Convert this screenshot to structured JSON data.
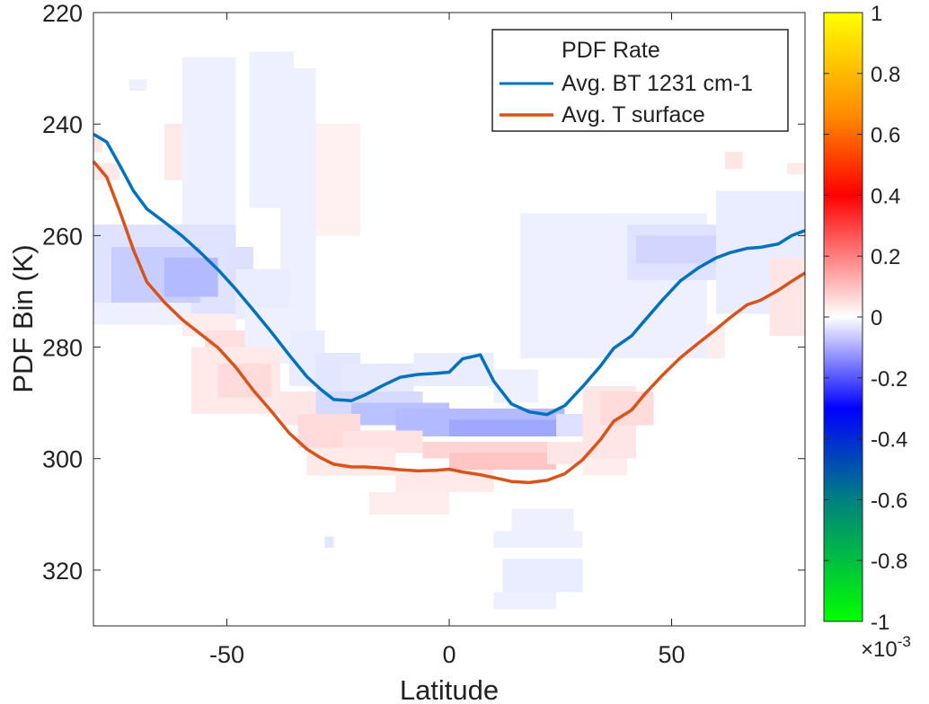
{
  "chart_data": {
    "type": "heatmap",
    "title": "",
    "xlabel": "Latitude",
    "ylabel": "PDF Bin (K)",
    "xlim": [
      -80,
      80
    ],
    "ylim": [
      220,
      330
    ],
    "y_reversed": true,
    "x_ticks": [
      -50,
      0,
      50
    ],
    "x_tick_labels": [
      "-50",
      "0",
      "50"
    ],
    "y_ticks": [
      220,
      240,
      260,
      280,
      300,
      320
    ],
    "y_tick_labels": [
      "220",
      "240",
      "260",
      "280",
      "300",
      "320"
    ],
    "grid": false,
    "legend": {
      "placement": "top-right",
      "title": "PDF Rate",
      "entries": [
        "Avg. BT 1231 cm-1",
        "Avg. T surface"
      ]
    },
    "colorbar": {
      "placement": "right",
      "lim": [
        -1,
        1
      ],
      "ticks": [
        -1,
        -0.8,
        -0.6,
        -0.4,
        -0.2,
        0,
        0.2,
        0.4,
        0.6,
        0.8,
        1
      ],
      "tick_labels": [
        "-1",
        "-0.8",
        "-0.6",
        "-0.4",
        "-0.2",
        "0",
        "0.2",
        "0.4",
        "0.6",
        "0.8",
        "1"
      ],
      "multiplier_label": "×10",
      "multiplier_exponent": "-3",
      "colors": [
        "#00ff00",
        "#008080",
        "#0000ff",
        "#ffffff",
        "#ff0000",
        "#ffff00"
      ]
    },
    "series": [
      {
        "name": "Avg. BT 1231 cm-1",
        "color": "#0072bd",
        "x": [
          -80,
          -77,
          -74,
          -71,
          -68,
          -64,
          -60,
          -56,
          -52,
          -48,
          -44,
          -40,
          -36,
          -32,
          -29,
          -26,
          -22,
          -19,
          -15,
          -11,
          -7,
          -3,
          0,
          3,
          7,
          10,
          14,
          18,
          22,
          26,
          30,
          34,
          37,
          41,
          44,
          48,
          52,
          56,
          60,
          63,
          67,
          70,
          74,
          77,
          80
        ],
        "y": [
          241.8,
          243.2,
          247.5,
          252,
          255.2,
          257.6,
          260.1,
          263,
          266.1,
          269.6,
          273.4,
          277.3,
          281.4,
          285.3,
          287.5,
          289.4,
          289.6,
          288.6,
          286.9,
          285.4,
          284.9,
          284.7,
          284.5,
          282.1,
          281.4,
          286.1,
          290.2,
          291.6,
          292.1,
          290.5,
          287.1,
          283.4,
          280.2,
          278,
          275.2,
          271.5,
          268.1,
          265.8,
          264,
          263.1,
          262.3,
          262.1,
          261.5,
          260,
          259.1
        ]
      },
      {
        "name": "Avg. T surface",
        "color": "#d95319",
        "x": [
          -80,
          -77,
          -74,
          -71,
          -68,
          -64,
          -60,
          -56,
          -52,
          -48,
          -44,
          -40,
          -36,
          -32,
          -29,
          -26,
          -22,
          -19,
          -15,
          -11,
          -7,
          -3,
          0,
          3,
          7,
          10,
          14,
          18,
          22,
          26,
          30,
          34,
          37,
          41,
          44,
          48,
          52,
          56,
          60,
          63,
          67,
          70,
          74,
          77,
          80
        ],
        "y": [
          246.7,
          249.5,
          255.8,
          262.6,
          268.3,
          272,
          275.1,
          277.6,
          280.1,
          283.6,
          287.8,
          291.5,
          295.4,
          298.3,
          299.8,
          301,
          301.5,
          301.5,
          301.7,
          302,
          302.2,
          302.1,
          301.9,
          302.4,
          302.9,
          303.4,
          304.1,
          304.3,
          303.9,
          302.7,
          300.2,
          296.6,
          293.3,
          291.3,
          288.4,
          285,
          281.9,
          279.3,
          276.8,
          274.8,
          272.4,
          271.6,
          269.8,
          268.2,
          266.7
        ]
      }
    ],
    "heatmap_cells": [
      {
        "x0": -82,
        "x1": -78,
        "y0": 242,
        "y1": 245,
        "v": 0.07
      },
      {
        "x0": -80,
        "x1": -74,
        "y0": 247,
        "y1": 250,
        "v": 0.06
      },
      {
        "x0": -64,
        "x1": -54,
        "y0": 240,
        "y1": 250,
        "v": 0.06
      },
      {
        "x0": -72,
        "x1": -68,
        "y0": 232,
        "y1": 234,
        "v": -0.05
      },
      {
        "x0": -60,
        "x1": -48,
        "y0": 228,
        "y1": 258,
        "v": -0.05
      },
      {
        "x0": -45,
        "x1": -35,
        "y0": 227,
        "y1": 255,
        "v": -0.05
      },
      {
        "x0": -38,
        "x1": -30,
        "y0": 230,
        "y1": 280,
        "v": -0.05
      },
      {
        "x0": -30,
        "x1": -20,
        "y0": 240,
        "y1": 260,
        "v": 0.04
      },
      {
        "x0": -80,
        "x1": -48,
        "y0": 258,
        "y1": 274,
        "v": -0.09
      },
      {
        "x0": -76,
        "x1": -56,
        "y0": 262,
        "y1": 272,
        "v": -0.16
      },
      {
        "x0": -64,
        "x1": -52,
        "y0": 264,
        "y1": 271,
        "v": -0.22
      },
      {
        "x0": -50,
        "x1": -44,
        "y0": 262,
        "y1": 268,
        "v": -0.1
      },
      {
        "x0": -48,
        "x1": -36,
        "y0": 266,
        "y1": 275,
        "v": -0.06
      },
      {
        "x0": -80,
        "x1": -58,
        "y0": 272,
        "y1": 276,
        "v": -0.05
      },
      {
        "x0": -60,
        "x1": -48,
        "y0": 274,
        "y1": 278,
        "v": 0.05
      },
      {
        "x0": -55,
        "x1": -46,
        "y0": 277,
        "y1": 280,
        "v": 0.09
      },
      {
        "x0": -46,
        "x1": -34,
        "y0": 273,
        "y1": 283,
        "v": -0.05
      },
      {
        "x0": -36,
        "x1": -28,
        "y0": 277,
        "y1": 287,
        "v": -0.06
      },
      {
        "x0": -30,
        "x1": -20,
        "y0": 281,
        "y1": 290,
        "v": -0.08
      },
      {
        "x0": -24,
        "x1": -8,
        "y0": 283,
        "y1": 289,
        "v": -0.07
      },
      {
        "x0": -8,
        "x1": 10,
        "y0": 281,
        "y1": 287,
        "v": -0.06
      },
      {
        "x0": 10,
        "x1": 20,
        "y0": 284,
        "y1": 290,
        "v": -0.05
      },
      {
        "x0": -58,
        "x1": -38,
        "y0": 280,
        "y1": 292,
        "v": 0.06
      },
      {
        "x0": -52,
        "x1": -40,
        "y0": 283,
        "y1": 289,
        "v": 0.1
      },
      {
        "x0": -38,
        "x1": -28,
        "y0": 288,
        "y1": 294,
        "v": 0.07
      },
      {
        "x0": -30,
        "x1": -6,
        "y0": 288,
        "y1": 293,
        "v": -0.12
      },
      {
        "x0": -22,
        "x1": 0,
        "y0": 290,
        "y1": 294,
        "v": -0.2
      },
      {
        "x0": -12,
        "x1": 26,
        "y0": 291,
        "y1": 296,
        "v": -0.22
      },
      {
        "x0": 0,
        "x1": 26,
        "y0": 293,
        "y1": 296,
        "v": -0.28
      },
      {
        "x0": 24,
        "x1": 32,
        "y0": 292,
        "y1": 296,
        "v": -0.1
      },
      {
        "x0": -34,
        "x1": -20,
        "y0": 292,
        "y1": 298,
        "v": 0.1
      },
      {
        "x0": -24,
        "x1": -6,
        "y0": 295,
        "y1": 299,
        "v": 0.08
      },
      {
        "x0": -6,
        "x1": 22,
        "y0": 297,
        "y1": 300,
        "v": 0.12
      },
      {
        "x0": 0,
        "x1": 24,
        "y0": 299,
        "y1": 302,
        "v": 0.16
      },
      {
        "x0": 22,
        "x1": 32,
        "y0": 297,
        "y1": 301,
        "v": 0.07
      },
      {
        "x0": -32,
        "x1": -12,
        "y0": 298,
        "y1": 303,
        "v": 0.06
      },
      {
        "x0": -12,
        "x1": 10,
        "y0": 302,
        "y1": 306,
        "v": 0.06
      },
      {
        "x0": -18,
        "x1": 0,
        "y0": 306,
        "y1": 310,
        "v": 0.05
      },
      {
        "x0": 30,
        "x1": 42,
        "y0": 287,
        "y1": 300,
        "v": 0.07
      },
      {
        "x0": 34,
        "x1": 46,
        "y0": 288,
        "y1": 294,
        "v": 0.1
      },
      {
        "x0": 30,
        "x1": 40,
        "y0": 300,
        "y1": 303,
        "v": 0.05
      },
      {
        "x0": -28,
        "x1": -26,
        "y0": 314,
        "y1": 316,
        "v": -0.08
      },
      {
        "x0": 14,
        "x1": 28,
        "y0": 309,
        "y1": 313,
        "v": -0.05
      },
      {
        "x0": 10,
        "x1": 30,
        "y0": 313,
        "y1": 316,
        "v": -0.05
      },
      {
        "x0": 12,
        "x1": 30,
        "y0": 318,
        "y1": 324,
        "v": -0.06
      },
      {
        "x0": 10,
        "x1": 24,
        "y0": 324,
        "y1": 327,
        "v": -0.05
      },
      {
        "x0": 16,
        "x1": 58,
        "y0": 256,
        "y1": 282,
        "v": -0.05
      },
      {
        "x0": 40,
        "x1": 66,
        "y0": 258,
        "y1": 268,
        "v": -0.09
      },
      {
        "x0": 42,
        "x1": 60,
        "y0": 260,
        "y1": 265,
        "v": -0.13
      },
      {
        "x0": 50,
        "x1": 62,
        "y0": 276,
        "y1": 282,
        "v": -0.05
      },
      {
        "x0": 60,
        "x1": 80,
        "y0": 252,
        "y1": 274,
        "v": -0.06
      },
      {
        "x0": 58,
        "x1": 62,
        "y0": 276,
        "y1": 282,
        "v": 0.05
      },
      {
        "x0": 72,
        "x1": 80,
        "y0": 264,
        "y1": 278,
        "v": 0.07
      },
      {
        "x0": 62,
        "x1": 66,
        "y0": 245,
        "y1": 248,
        "v": 0.07
      },
      {
        "x0": 76,
        "x1": 80,
        "y0": 247,
        "y1": 249,
        "v": 0.06
      }
    ]
  }
}
